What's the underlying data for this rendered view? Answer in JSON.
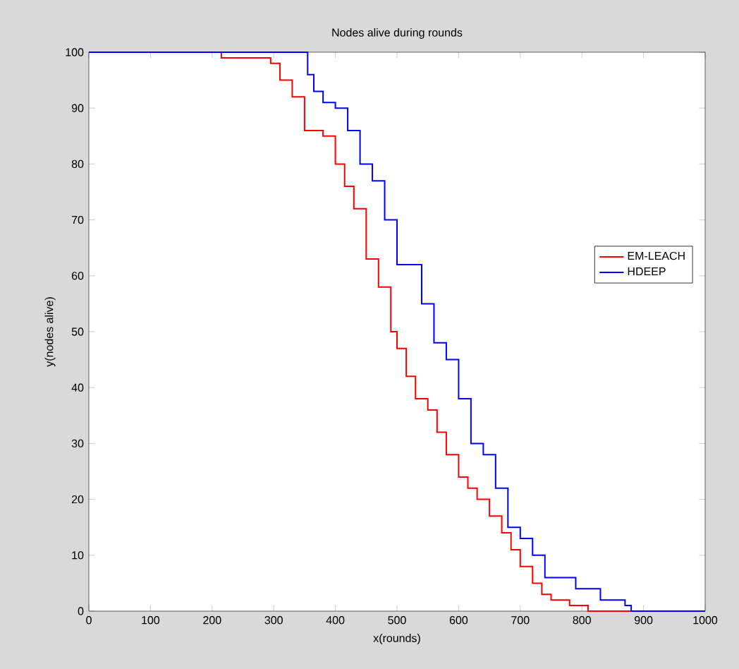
{
  "chart_data": {
    "type": "step",
    "title": "Nodes alive during rounds",
    "xlabel": "x(rounds)",
    "ylabel": "y(nodes alive)",
    "xlim": [
      0,
      1000
    ],
    "ylim": [
      0,
      100
    ],
    "xticks": [
      0,
      100,
      200,
      300,
      400,
      500,
      600,
      700,
      800,
      900,
      1000
    ],
    "yticks": [
      0,
      10,
      20,
      30,
      40,
      50,
      60,
      70,
      80,
      90,
      100
    ],
    "legend": "right",
    "grid": false,
    "series": [
      {
        "name": "EM-LEACH",
        "color": "#ff0000",
        "x": [
          0,
          215,
          295,
          310,
          330,
          350,
          380,
          400,
          415,
          430,
          450,
          470,
          490,
          500,
          515,
          530,
          550,
          565,
          580,
          600,
          615,
          630,
          650,
          670,
          685,
          700,
          720,
          735,
          750,
          780,
          810,
          1000
        ],
        "values": [
          100,
          99,
          98,
          95,
          92,
          86,
          85,
          80,
          76,
          72,
          63,
          58,
          50,
          47,
          42,
          38,
          36,
          32,
          28,
          24,
          22,
          20,
          17,
          14,
          11,
          8,
          5,
          3,
          2,
          1,
          0,
          0
        ]
      },
      {
        "name": "HDEEP",
        "color": "#0000ff",
        "x": [
          0,
          345,
          355,
          365,
          380,
          400,
          420,
          440,
          460,
          480,
          500,
          520,
          540,
          560,
          580,
          600,
          620,
          640,
          660,
          680,
          700,
          720,
          740,
          790,
          830,
          870,
          880,
          1000
        ],
        "values": [
          100,
          100,
          96,
          93,
          91,
          90,
          86,
          80,
          77,
          70,
          62,
          62,
          55,
          48,
          45,
          38,
          30,
          28,
          22,
          15,
          13,
          10,
          6,
          4,
          2,
          1,
          0,
          0
        ]
      }
    ]
  }
}
